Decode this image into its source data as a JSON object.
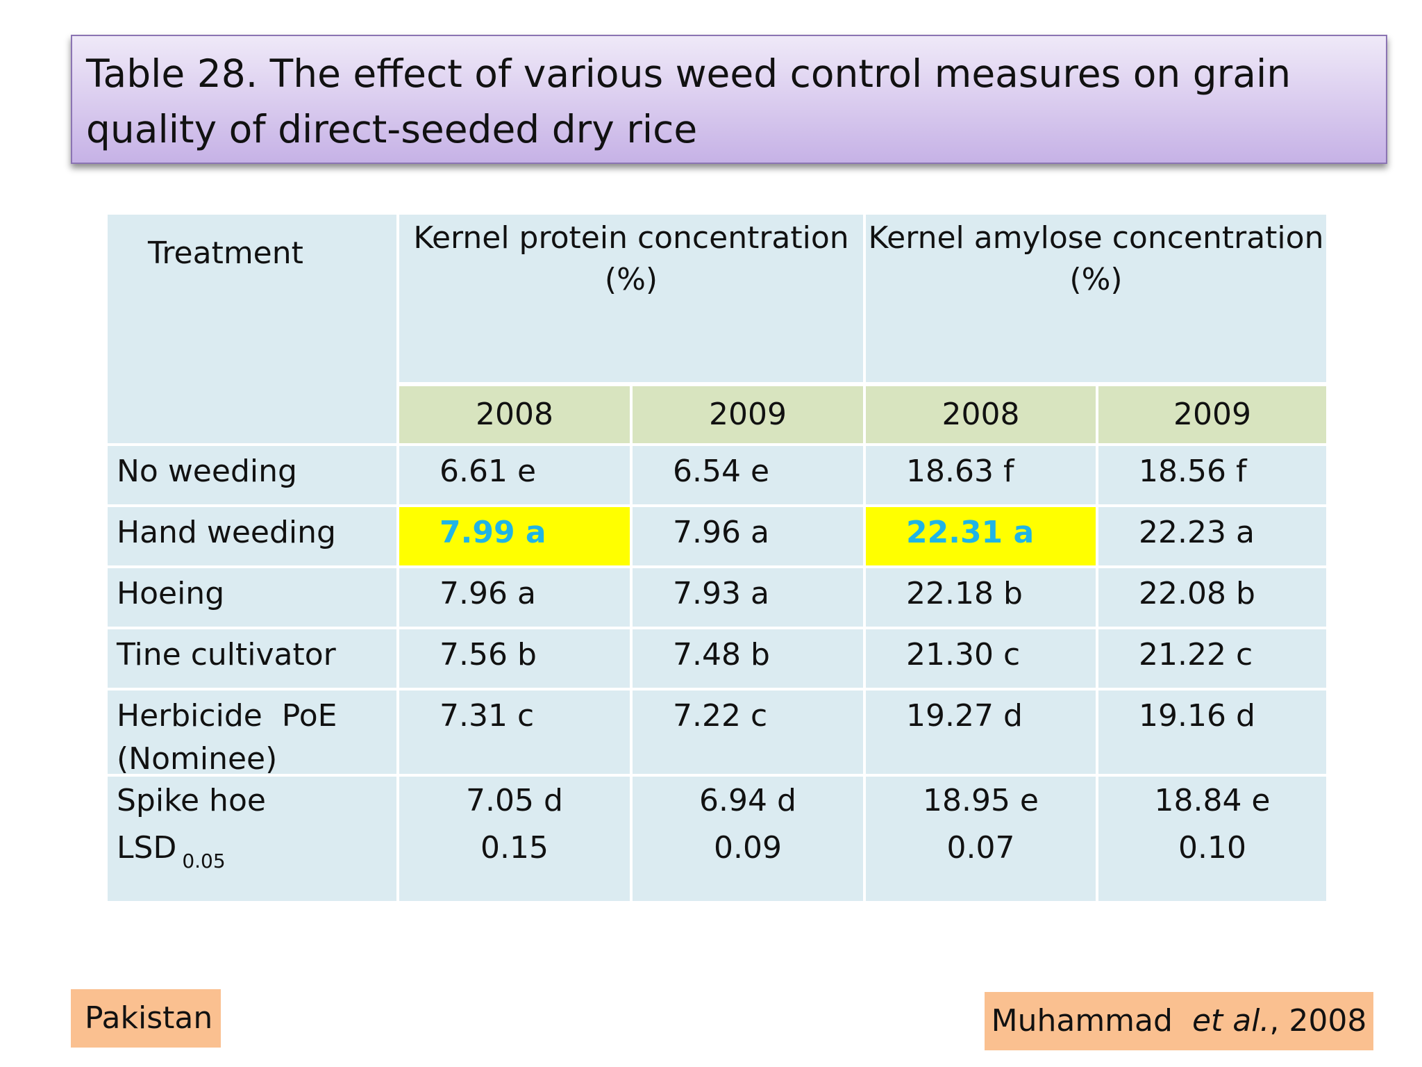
{
  "title": {
    "line1": "Table 28. The effect of various weed control measures on grain",
    "line2": "quality of direct-seeded dry rice"
  },
  "table": {
    "treatment_header": "Treatment",
    "protein_header": {
      "line1": "Kernel protein concentration",
      "line2": "(%)"
    },
    "amylose_header": {
      "line1": "Kernel amylose concentration",
      "line2": "(%)"
    },
    "years": [
      "2008",
      "2009",
      "2008",
      "2009"
    ],
    "rows": [
      {
        "label": "No weeding",
        "values": [
          "6.61 e",
          "6.54 e",
          "18.63 f",
          "18.56 f"
        ]
      },
      {
        "label": "Hand weeding",
        "values": [
          "7.99 a",
          "7.96 a",
          "22.31 a",
          "22.23 a"
        ]
      },
      {
        "label": "Hoeing",
        "values": [
          "7.96 a",
          "7.93 a",
          "22.18 b",
          "22.08 b"
        ]
      },
      {
        "label": "Tine cultivator",
        "values": [
          "7.56 b",
          "7.48 b",
          "21.30 c",
          "21.22 c"
        ]
      },
      {
        "label_line1": "Herbicide  PoE",
        "label_line2": "(Nominee)",
        "values": [
          "7.31 c",
          "7.22 c",
          "19.27 d",
          "19.16 d"
        ]
      }
    ],
    "last_block": {
      "spike_label": "Spike hoe",
      "spike_values": [
        "7.05 d",
        "6.94 d",
        "18.95 e",
        "18.84 e"
      ],
      "lsd_label": "LSD",
      "lsd_subscript": "0.05",
      "lsd_values": [
        "0.15",
        "0.09",
        "0.07",
        "0.10"
      ]
    },
    "highlight_colors": {
      "fill": "#ffff00",
      "text": "#1fb4e6"
    }
  },
  "footer": {
    "country": "Pakistan",
    "citation_author": "Muhammad",
    "citation_etal": "et al.",
    "citation_rest": ", 2008"
  }
}
